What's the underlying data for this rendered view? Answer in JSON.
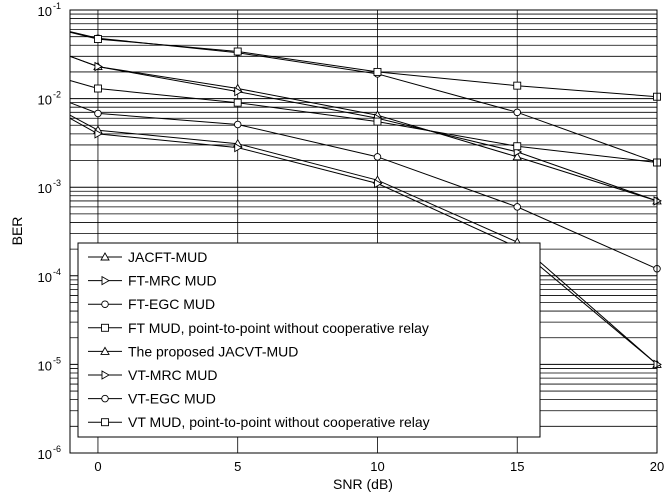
{
  "chart_data": {
    "type": "line",
    "xlabel": "SNR (dB)",
    "ylabel": "BER",
    "xlim": [
      -1,
      20
    ],
    "ylim": [
      1e-06,
      0.1
    ],
    "yscale": "log",
    "x_ticks": [
      0,
      5,
      10,
      15,
      20
    ],
    "x_tick_labels": [
      "0",
      "5",
      "10",
      "15",
      "20"
    ],
    "y_ticks": [
      1e-06,
      1e-05,
      0.0001,
      0.001,
      0.01,
      0.1
    ],
    "y_tick_labels": [
      {
        "base": "10",
        "exp": "-6"
      },
      {
        "base": "10",
        "exp": "-5"
      },
      {
        "base": "10",
        "exp": "-4"
      },
      {
        "base": "10",
        "exp": "-3"
      },
      {
        "base": "10",
        "exp": "-2"
      },
      {
        "base": "10",
        "exp": "-1"
      }
    ],
    "grid": true,
    "legend_position": "bottom-left",
    "series": [
      {
        "name": "JACFT-MUD",
        "marker": "triangle-up",
        "x": [
          -1,
          0,
          5,
          10,
          15,
          20
        ],
        "y": [
          0.03,
          0.023,
          0.013,
          0.0065,
          0.0022,
          0.0007
        ]
      },
      {
        "name": "FT-MRC MUD",
        "marker": "triangle-right",
        "x": [
          -1,
          0,
          5,
          10,
          15,
          20
        ],
        "y": [
          0.03,
          0.023,
          0.012,
          0.006,
          0.0025,
          0.0007
        ]
      },
      {
        "name": "FT-EGC MUD",
        "marker": "circle",
        "x": [
          -1,
          0,
          5,
          10,
          15,
          20
        ],
        "y": [
          0.057,
          0.048,
          0.033,
          0.019,
          0.007,
          0.0019
        ]
      },
      {
        "name": "FT MUD, point-to-point without cooperative relay",
        "marker": "square",
        "x": [
          -1,
          0,
          5,
          10,
          15,
          20
        ],
        "y": [
          0.056,
          0.047,
          0.034,
          0.02,
          0.014,
          0.0105
        ]
      },
      {
        "name": "The proposed JACVT-MUD",
        "marker": "triangle-up",
        "x": [
          -1,
          0,
          5,
          10,
          15,
          20
        ],
        "y": [
          0.0065,
          0.0044,
          0.0031,
          0.0012,
          0.00024,
          1e-05
        ]
      },
      {
        "name": "VT-MRC MUD",
        "marker": "triangle-right",
        "x": [
          -1,
          0,
          5,
          10,
          15,
          20
        ],
        "y": [
          0.006,
          0.004,
          0.0028,
          0.0011,
          0.00021,
          1e-05
        ]
      },
      {
        "name": "VT-EGC MUD",
        "marker": "circle",
        "x": [
          -1,
          0,
          5,
          10,
          15,
          20
        ],
        "y": [
          0.009,
          0.0068,
          0.0051,
          0.0022,
          0.0006,
          0.00012
        ]
      },
      {
        "name": "VT MUD, point-to-point without cooperative relay",
        "marker": "square",
        "x": [
          -1,
          0,
          5,
          10,
          15,
          20
        ],
        "y": [
          0.016,
          0.013,
          0.009,
          0.0055,
          0.0029,
          0.0019
        ]
      }
    ]
  }
}
